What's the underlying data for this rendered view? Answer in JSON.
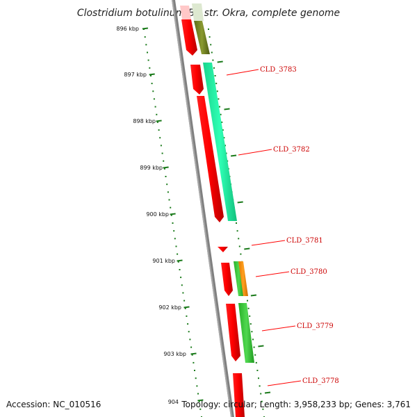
{
  "title": "Clostridium botulinum B1 str. Okra, complete genome",
  "footer": {
    "accession": "Accession: NC_010516",
    "summary": "Topology: circular; Length: 3,958,233 bp; Genes: 3,761"
  },
  "ticks": [
    {
      "label": "896 kbp"
    },
    {
      "label": "897 kbp"
    },
    {
      "label": "898 kbp"
    },
    {
      "label": "899 kbp"
    },
    {
      "label": "900 kbp"
    },
    {
      "label": "901 kbp"
    },
    {
      "label": "902 kbp"
    },
    {
      "label": "903 kbp"
    },
    {
      "label": "904"
    }
  ],
  "gene_labels": [
    "CLD_3783",
    "CLD_3782",
    "CLD_3781",
    "CLD_3780",
    "CLD_3779",
    "CLD_3778"
  ],
  "colors": {
    "backbone": "#7a7a7a",
    "ticks": "#1a7a1a",
    "cds": "#ff0000",
    "label_text": "#cc0000",
    "label_line": "#ff0000",
    "feature_green": "#35c635",
    "feature_mint": "#1ef0a0",
    "feature_olive": "#6f7f20",
    "feature_orange": "#f08c00"
  }
}
